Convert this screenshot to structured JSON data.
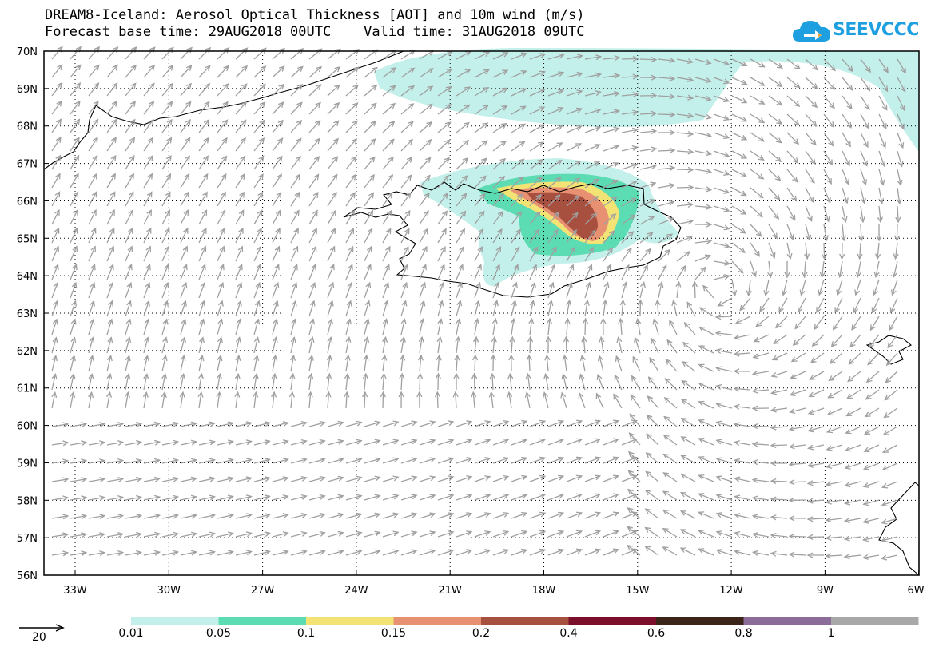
{
  "title": {
    "line1": "DREAM8-Iceland: Aerosol Optical Thickness [AOT] and 10m wind (m/s)",
    "line2": "Forecast base time: 29AUG2018 00UTC    Valid time: 31AUG2018 09UTC"
  },
  "logo": {
    "text": "SEEVCCC"
  },
  "axes": {
    "lon_labels": [
      "33W",
      "30W",
      "27W",
      "24W",
      "21W",
      "18W",
      "15W",
      "12W",
      "9W",
      "6W"
    ],
    "lat_labels": [
      "70N",
      "69N",
      "68N",
      "67N",
      "66N",
      "65N",
      "64N",
      "63N",
      "62N",
      "61N",
      "60N",
      "59N",
      "58N",
      "57N",
      "56N"
    ]
  },
  "legend": {
    "colors": [
      "#c3f0ea",
      "#5cdcb3",
      "#f3e375",
      "#e79072",
      "#a85040",
      "#7b0e2a",
      "#3d2418",
      "#8c6d9a",
      "#a8a8a8"
    ],
    "labels": [
      "0.01",
      "0.05",
      "0.1",
      "0.15",
      "0.2",
      "0.4",
      "0.6",
      "0.8",
      "1"
    ]
  },
  "wind_reference": {
    "label": "20"
  }
}
